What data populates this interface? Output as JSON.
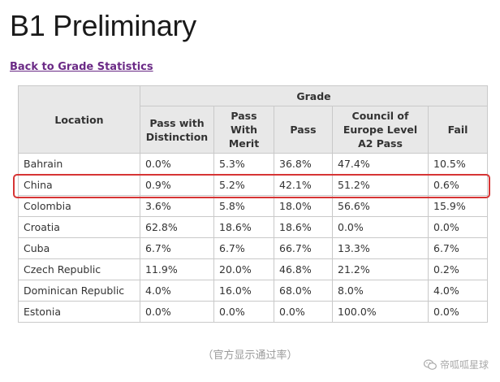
{
  "page": {
    "title": "B1 Preliminary",
    "back_link": "Back to Grade Statistics",
    "caption": "（官方显示通过率）",
    "watermark": "帝呱呱星球"
  },
  "table": {
    "location_header": "Location",
    "group_header": "Grade",
    "columns": [
      "Pass with Distinction",
      "Pass With Merit",
      "Pass",
      "Council of Europe Level A2 Pass",
      "Fail"
    ],
    "highlighted_row": "China",
    "rows": [
      {
        "location": "Bahrain",
        "values": [
          "0.0%",
          "5.3%",
          "36.8%",
          "47.4%",
          "10.5%"
        ]
      },
      {
        "location": "China",
        "values": [
          "0.9%",
          "5.2%",
          "42.1%",
          "51.2%",
          "0.6%"
        ]
      },
      {
        "location": "Colombia",
        "values": [
          "3.6%",
          "5.8%",
          "18.0%",
          "56.6%",
          "15.9%"
        ]
      },
      {
        "location": "Croatia",
        "values": [
          "62.8%",
          "18.6%",
          "18.6%",
          "0.0%",
          "0.0%"
        ]
      },
      {
        "location": "Cuba",
        "values": [
          "6.7%",
          "6.7%",
          "66.7%",
          "13.3%",
          "6.7%"
        ]
      },
      {
        "location": "Czech Republic",
        "values": [
          "11.9%",
          "20.0%",
          "46.8%",
          "21.2%",
          "0.2%"
        ]
      },
      {
        "location": "Dominican Republic",
        "values": [
          "4.0%",
          "16.0%",
          "68.0%",
          "8.0%",
          "4.0%"
        ]
      },
      {
        "location": "Estonia",
        "values": [
          "0.0%",
          "0.0%",
          "0.0%",
          "100.0%",
          "0.0%"
        ]
      }
    ]
  },
  "colors": {
    "link": "#6b2a86",
    "header_bg": "#e8e8e8",
    "highlight": "#d63535"
  }
}
